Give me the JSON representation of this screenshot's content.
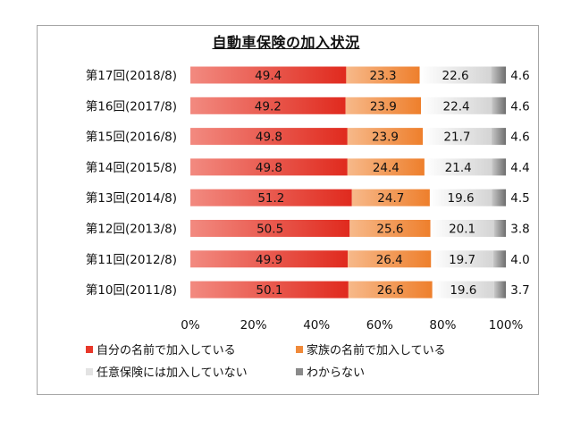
{
  "chart_data": {
    "type": "bar",
    "orientation": "horizontal",
    "stacked": true,
    "title": "自動車保険の加入状況",
    "categories": [
      "第17回(2018/8)",
      "第16回(2017/8)",
      "第15回(2016/8)",
      "第14回(2015/8)",
      "第13回(2014/8)",
      "第12回(2013/8)",
      "第11回(2012/8)",
      "第10回(2011/8)"
    ],
    "series": [
      {
        "name": "自分の名前で加入している",
        "color": "#e8382a",
        "values": [
          "49.4",
          "49.2",
          "49.8",
          "49.8",
          "51.2",
          "50.5",
          "49.9",
          "50.1"
        ]
      },
      {
        "name": "家族の名前で加入している",
        "color": "#f08a3a",
        "values": [
          "23.3",
          "23.9",
          "23.9",
          "24.4",
          "24.7",
          "25.6",
          "26.4",
          "26.6"
        ]
      },
      {
        "name": "任意保険には加入していない",
        "color": "#e3e3e3",
        "values": [
          "22.6",
          "22.4",
          "21.7",
          "21.4",
          "19.6",
          "20.1",
          "19.7",
          "19.6"
        ]
      },
      {
        "name": "わからない",
        "color": "#8a8a8a",
        "values": [
          "4.6",
          "4.6",
          "4.6",
          "4.4",
          "4.5",
          "3.8",
          "4.0",
          "3.7"
        ]
      }
    ],
    "xlim": [
      0,
      100
    ],
    "xticks": [
      "0%",
      "20%",
      "40%",
      "60%",
      "80%",
      "100%"
    ],
    "grid": false,
    "legend_position": "bottom"
  }
}
